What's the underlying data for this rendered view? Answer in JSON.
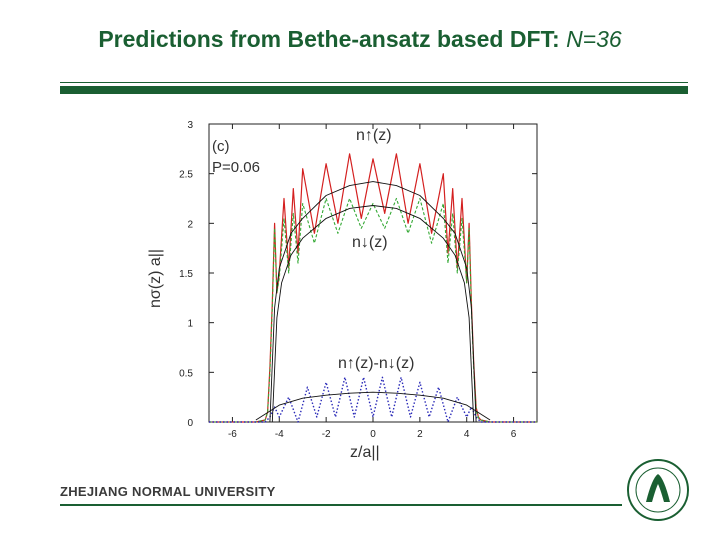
{
  "slide": {
    "title_main": "Predictions from Bethe-ansatz based DFT: ",
    "title_tail": "N=36",
    "footer": "ZHEJIANG NORMAL UNIVERSITY",
    "accent_color": "#1a5f32"
  },
  "chart_data": {
    "type": "line",
    "xlabel": "z/a||",
    "ylabel": "nσ(z) a||",
    "xlim": [
      -7,
      7
    ],
    "ylim": [
      0,
      3
    ],
    "xticks": [
      -6,
      -4,
      -2,
      0,
      2,
      4,
      6
    ],
    "yticks": [
      0,
      0.5,
      1,
      1.5,
      2,
      2.5,
      3
    ],
    "grid": false,
    "annotations": {
      "panel": "(c)",
      "polarization": "P=0.06",
      "up_label": "n↑(z)",
      "down_label": "n↓(z)",
      "diff_label": "n↑(z)-n↓(z)"
    },
    "series": [
      {
        "name": "n↑(z)",
        "style": "solid",
        "color": "#d42020",
        "x": [
          -7.0,
          -6.0,
          -5.0,
          -4.6,
          -4.5,
          -4.4,
          -4.3,
          -4.2,
          -4.1,
          -4.0,
          -3.8,
          -3.6,
          -3.4,
          -3.2,
          -3.0,
          -2.5,
          -2.0,
          -1.5,
          -1.0,
          -0.5,
          0.0,
          0.5,
          1.0,
          1.5,
          2.0,
          2.5,
          3.0,
          3.2,
          3.4,
          3.6,
          3.8,
          4.0,
          4.1,
          4.2,
          4.3,
          4.4,
          4.5,
          4.6,
          5.0,
          6.0,
          7.0
        ],
        "y": [
          0.0,
          0.0,
          0.0,
          0.02,
          0.1,
          0.55,
          1.2,
          2.0,
          1.3,
          1.5,
          2.25,
          1.55,
          2.35,
          1.7,
          2.55,
          1.9,
          2.6,
          2.0,
          2.7,
          2.05,
          2.65,
          2.1,
          2.7,
          2.0,
          2.6,
          1.9,
          2.5,
          1.7,
          2.35,
          1.55,
          2.25,
          1.4,
          2.0,
          1.2,
          0.6,
          0.15,
          0.05,
          0.02,
          0.0,
          0.0,
          0.0
        ]
      },
      {
        "name": "n↓(z)",
        "style": "dashed",
        "color": "#33a833",
        "x": [
          -7.0,
          -6.0,
          -5.0,
          -4.6,
          -4.5,
          -4.4,
          -4.3,
          -4.2,
          -4.1,
          -4.0,
          -3.8,
          -3.6,
          -3.4,
          -3.2,
          -3.0,
          -2.5,
          -2.0,
          -1.5,
          -1.0,
          -0.5,
          0.0,
          0.5,
          1.0,
          1.5,
          2.0,
          2.5,
          3.0,
          3.2,
          3.4,
          3.6,
          3.8,
          4.0,
          4.1,
          4.2,
          4.3,
          4.4,
          4.5,
          4.6,
          5.0,
          6.0,
          7.0
        ],
        "y": [
          0.0,
          0.0,
          0.0,
          0.02,
          0.1,
          0.5,
          1.15,
          1.95,
          1.3,
          1.45,
          2.05,
          1.5,
          2.1,
          1.6,
          2.2,
          1.8,
          2.25,
          1.9,
          2.25,
          1.95,
          2.2,
          1.95,
          2.25,
          1.9,
          2.25,
          1.8,
          2.2,
          1.6,
          2.1,
          1.5,
          2.05,
          1.4,
          1.95,
          1.15,
          0.55,
          0.12,
          0.04,
          0.02,
          0.0,
          0.0,
          0.0
        ]
      },
      {
        "name": "n↑(z)-n↓(z)",
        "style": "dotted",
        "color": "#2a2ab8",
        "x": [
          -7.0,
          -5.0,
          -4.6,
          -4.4,
          -4.2,
          -4.0,
          -3.6,
          -3.2,
          -2.8,
          -2.4,
          -2.0,
          -1.6,
          -1.2,
          -0.8,
          -0.4,
          0.0,
          0.4,
          0.8,
          1.2,
          1.6,
          2.0,
          2.4,
          2.8,
          3.2,
          3.6,
          4.0,
          4.2,
          4.4,
          4.6,
          5.0,
          7.0
        ],
        "y": [
          0.0,
          0.0,
          0.0,
          0.05,
          0.15,
          0.05,
          0.25,
          0.0,
          0.35,
          0.05,
          0.4,
          0.05,
          0.45,
          0.05,
          0.45,
          0.05,
          0.45,
          0.05,
          0.45,
          0.05,
          0.4,
          0.05,
          0.35,
          0.0,
          0.25,
          0.05,
          0.15,
          0.05,
          0.0,
          0.0,
          0.0
        ]
      },
      {
        "name": "",
        "style": "thin-solid",
        "color": "#111111",
        "x": [
          -4.4,
          -4.2,
          -4.0,
          -3.5,
          -3.0,
          -2.0,
          -1.0,
          0.0,
          1.0,
          2.0,
          3.0,
          3.5,
          4.0,
          4.2,
          4.4
        ],
        "y": [
          0.0,
          1.15,
          1.55,
          1.9,
          2.05,
          2.28,
          2.38,
          2.42,
          2.38,
          2.28,
          2.05,
          1.9,
          1.55,
          1.15,
          0.0
        ]
      },
      {
        "name": "",
        "style": "thin-solid",
        "color": "#111111",
        "x": [
          -4.3,
          -4.1,
          -3.9,
          -3.5,
          -3.0,
          -2.0,
          -1.0,
          0.0,
          1.0,
          2.0,
          3.0,
          3.5,
          3.9,
          4.1,
          4.3
        ],
        "y": [
          0.0,
          1.05,
          1.4,
          1.68,
          1.85,
          2.05,
          2.15,
          2.18,
          2.15,
          2.05,
          1.85,
          1.68,
          1.4,
          1.05,
          0.0
        ]
      },
      {
        "name": "",
        "style": "thin-solid",
        "color": "#111111",
        "x": [
          -5.0,
          -4.0,
          -3.0,
          -2.0,
          -1.0,
          0.0,
          1.0,
          2.0,
          3.0,
          4.0,
          5.0
        ],
        "y": [
          0.02,
          0.17,
          0.24,
          0.27,
          0.29,
          0.3,
          0.29,
          0.27,
          0.24,
          0.17,
          0.02
        ]
      }
    ]
  }
}
